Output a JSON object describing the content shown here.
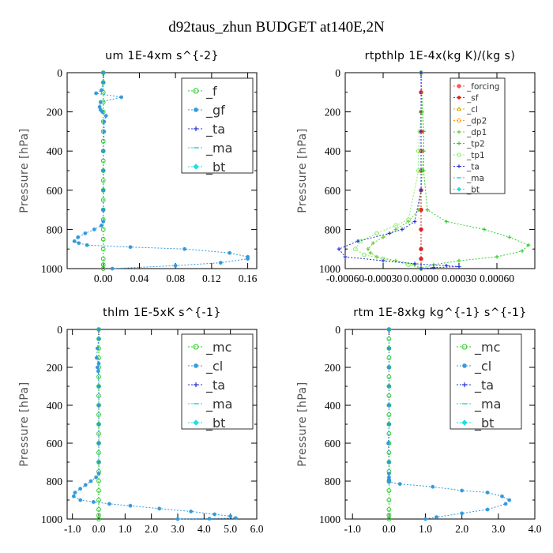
{
  "figure": {
    "title": "d92taus_zhun  BUDGET at140E,2N"
  },
  "chart_data": [
    {
      "type": "line",
      "title": "um   1E-4xm  s^{-2}",
      "xlabel": "",
      "ylabel": "Pressure [hPa]",
      "xlim": [
        -0.04,
        0.17
      ],
      "ylim": [
        1000,
        0
      ],
      "xticks": [
        0.0,
        0.04,
        0.08,
        0.12,
        0.16
      ],
      "xtick_labels": [
        "0.00",
        "0.04",
        "0.08",
        "0.12",
        "0.16"
      ],
      "yticks": [
        0,
        200,
        400,
        600,
        800,
        1000
      ],
      "ytick_labels": [
        "0",
        "200",
        "400",
        "600",
        "800",
        "1000"
      ],
      "legend": "top-right",
      "series": [
        {
          "name": "_f",
          "color": "#22cc22",
          "marker": "circle-open",
          "x": [
            0,
            0,
            0,
            0,
            0,
            0,
            0,
            0,
            0,
            0,
            0,
            0,
            0,
            0,
            0,
            0,
            0,
            0,
            0,
            0,
            0,
            0
          ],
          "y": [
            0,
            50,
            100,
            150,
            200,
            250,
            300,
            350,
            400,
            450,
            500,
            550,
            600,
            650,
            700,
            750,
            800,
            850,
            900,
            950,
            980,
            1000
          ]
        },
        {
          "name": "_gf",
          "color": "#3399dd",
          "marker": "star",
          "x": [
            0,
            0,
            -0.002,
            -0.008,
            0.02,
            -0.003,
            -0.004,
            -0.003,
            -0.001,
            0.003,
            0.001,
            0.001,
            0,
            0,
            0,
            0,
            0,
            -0.002,
            -0.01,
            -0.02,
            -0.028,
            -0.032,
            -0.027,
            -0.018,
            0.03,
            0.09,
            0.14,
            0.16,
            0.16,
            0.13,
            0.08,
            0.01
          ],
          "y": [
            0,
            50,
            90,
            105,
            125,
            150,
            175,
            190,
            200,
            220,
            250,
            300,
            400,
            500,
            600,
            700,
            760,
            780,
            800,
            820,
            840,
            860,
            870,
            880,
            890,
            900,
            920,
            940,
            950,
            970,
            985,
            1000
          ]
        },
        {
          "name": "_ta",
          "color": "#2233dd",
          "marker": "plus",
          "x": [],
          "y": []
        },
        {
          "name": "_ma",
          "color": "#22cccc",
          "marker": "dash",
          "x": [],
          "y": []
        },
        {
          "name": "_bt",
          "color": "#22dddd",
          "marker": "diamond",
          "x": [],
          "y": []
        }
      ]
    },
    {
      "type": "line",
      "title": "rtpthlp   1E-4x(kg K)/(kg s)",
      "xlabel": "",
      "ylabel": "Pressure [hPa]",
      "xlim": [
        -0.0006,
        0.0009
      ],
      "ylim": [
        1000,
        0
      ],
      "xticks": [
        -0.0006,
        -0.0003,
        0.0,
        0.0003,
        0.0006
      ],
      "xtick_labels": [
        "-0.00060",
        "-0.00030",
        "0.00000",
        "0.00030",
        "0.00060"
      ],
      "yticks": [
        0,
        200,
        400,
        600,
        800,
        1000
      ],
      "ytick_labels": [
        "0",
        "200",
        "400",
        "600",
        "800",
        "1000"
      ],
      "legend": "top-right",
      "series": [
        {
          "name": "_forcing",
          "color": "#ff5555",
          "marker": "circle",
          "x": [
            0,
            0,
            0,
            0,
            0,
            0,
            0,
            0,
            0,
            0,
            0,
            0
          ],
          "y": [
            0,
            100,
            200,
            300,
            400,
            500,
            600,
            700,
            800,
            900,
            950,
            1000
          ]
        },
        {
          "name": "_sf",
          "color": "#dd2222",
          "marker": "star",
          "x": [
            0,
            0,
            0,
            0,
            0,
            0,
            0,
            0,
            0,
            0,
            0,
            0
          ],
          "y": [
            0,
            100,
            200,
            300,
            400,
            500,
            600,
            700,
            800,
            900,
            950,
            1000
          ]
        },
        {
          "name": "_cl",
          "color": "#ddaa00",
          "marker": "triangle",
          "x": [],
          "y": []
        },
        {
          "name": "_dp2",
          "color": "#ff9900",
          "marker": "circle-open",
          "x": [],
          "y": []
        },
        {
          "name": "_dp1",
          "color": "#66cc33",
          "marker": "plus",
          "x": [
            0,
            1e-05,
            2e-05,
            2e-05,
            1e-05,
            0,
            -2e-05,
            -0.0001,
            -0.0002,
            -0.0003,
            -0.00038,
            -0.00042,
            -0.0004,
            -0.00035,
            -0.0002,
            -5e-05,
            0
          ],
          "y": [
            0,
            200,
            300,
            400,
            500,
            600,
            700,
            760,
            800,
            840,
            870,
            900,
            920,
            940,
            960,
            980,
            1000
          ]
        },
        {
          "name": "_tp2",
          "color": "#33cc33",
          "marker": "plus",
          "x": [
            0,
            1e-05,
            2e-05,
            2e-05,
            2e-05,
            5e-05,
            0.0002,
            0.0005,
            0.0007,
            0.00085,
            0.0008,
            0.0006,
            0.0003,
            0.0001,
            0
          ],
          "y": [
            0,
            200,
            300,
            400,
            500,
            700,
            760,
            800,
            840,
            880,
            910,
            940,
            960,
            980,
            1000
          ]
        },
        {
          "name": "_tp1",
          "color": "#88ee66",
          "marker": "circle-open",
          "x": [
            0,
            0,
            -1e-05,
            -2e-05,
            -2e-05,
            -0.0001,
            -0.0002,
            -0.00035,
            -0.00048,
            -0.00052,
            -0.00045,
            -0.0003,
            -0.0001,
            0
          ],
          "y": [
            0,
            200,
            300,
            400,
            500,
            750,
            780,
            820,
            860,
            900,
            930,
            950,
            980,
            1000
          ]
        },
        {
          "name": "_ta",
          "color": "#2233dd",
          "marker": "plus",
          "x": [
            0,
            0,
            0,
            -5e-05,
            -0.00015,
            -0.00025,
            -0.0005,
            -0.00065,
            -0.0006,
            -0.0003,
            -5e-05,
            0.0002,
            0.0003,
            0.0001,
            0
          ],
          "y": [
            0,
            300,
            600,
            760,
            800,
            820,
            860,
            900,
            940,
            960,
            975,
            985,
            990,
            995,
            1000
          ]
        },
        {
          "name": "_ma",
          "color": "#22cccc",
          "marker": "dash",
          "x": [],
          "y": []
        },
        {
          "name": "_bt",
          "color": "#22dddd",
          "marker": "diamond",
          "x": [],
          "y": []
        }
      ]
    },
    {
      "type": "line",
      "title": "thlm   1E-5xK  s^{-1}",
      "xlabel": "",
      "ylabel": "Pressure [hPa]",
      "xlim": [
        -1.2,
        6.0
      ],
      "ylim": [
        1000,
        0
      ],
      "xticks": [
        -1.0,
        0.0,
        1.0,
        2.0,
        3.0,
        4.0,
        5.0,
        6.0
      ],
      "xtick_labels": [
        "-1.0",
        "0.0",
        "1.0",
        "2.0",
        "3.0",
        "4.0",
        "5.0",
        "6.0"
      ],
      "yticks": [
        0,
        200,
        400,
        600,
        800,
        1000
      ],
      "ytick_labels": [
        "0",
        "200",
        "400",
        "600",
        "800",
        "1000"
      ],
      "legend": "top-right",
      "series": [
        {
          "name": "_mc",
          "color": "#22cc22",
          "marker": "circle-open",
          "x": [
            0,
            0,
            0,
            0,
            0,
            0,
            0,
            0,
            0,
            0,
            0,
            0,
            0,
            0,
            0,
            0,
            0,
            0,
            0,
            0,
            0,
            0
          ],
          "y": [
            0,
            50,
            100,
            150,
            200,
            250,
            300,
            350,
            400,
            450,
            500,
            550,
            600,
            650,
            700,
            750,
            800,
            850,
            900,
            950,
            980,
            1000
          ]
        },
        {
          "name": "_cl",
          "color": "#3399dd",
          "marker": "star",
          "x": [
            0,
            0,
            -0.05,
            -0.08,
            0,
            -0.05,
            -0.02,
            0,
            0,
            0,
            0,
            0,
            0,
            -0.1,
            -0.3,
            -0.5,
            -0.7,
            -0.9,
            -0.95,
            -0.7,
            -0.2,
            0.4,
            1.2,
            2.3,
            3.5,
            4.4,
            5.0,
            5.2,
            4.2,
            3.0
          ],
          "y": [
            0,
            50,
            100,
            150,
            180,
            200,
            220,
            300,
            400,
            500,
            600,
            700,
            760,
            780,
            800,
            820,
            840,
            860,
            880,
            900,
            910,
            920,
            930,
            945,
            960,
            975,
            985,
            995,
            998,
            1000
          ]
        },
        {
          "name": "_ta",
          "color": "#2233dd",
          "marker": "plus",
          "x": [],
          "y": []
        },
        {
          "name": "_ma",
          "color": "#22cccc",
          "marker": "dash",
          "x": [],
          "y": []
        },
        {
          "name": "_bt",
          "color": "#22dddd",
          "marker": "diamond",
          "x": [],
          "y": []
        }
      ]
    },
    {
      "type": "line",
      "title": "rtm   1E-8xkg  kg^{-1} s^{-1}",
      "xlabel": "",
      "ylabel": "Pressure [hPa]",
      "xlim": [
        -1.2,
        4.0
      ],
      "ylim": [
        1000,
        0
      ],
      "xticks": [
        -1.0,
        0.0,
        1.0,
        2.0,
        3.0,
        4.0
      ],
      "xtick_labels": [
        "-1.0",
        "0.0",
        "1.0",
        "2.0",
        "3.0",
        "4.0"
      ],
      "yticks": [
        0,
        200,
        400,
        600,
        800,
        1000
      ],
      "ytick_labels": [
        "0",
        "200",
        "400",
        "600",
        "800",
        "1000"
      ],
      "legend": "top-right",
      "series": [
        {
          "name": "_mc",
          "color": "#22cc22",
          "marker": "circle-open",
          "x": [
            0,
            0,
            0,
            0,
            0,
            0,
            0,
            0,
            0,
            0,
            0,
            0,
            0,
            0,
            0,
            0,
            0,
            0,
            0,
            0,
            0,
            0
          ],
          "y": [
            0,
            50,
            100,
            150,
            200,
            250,
            300,
            350,
            400,
            450,
            500,
            550,
            600,
            650,
            700,
            750,
            800,
            850,
            900,
            950,
            980,
            1000
          ]
        },
        {
          "name": "_cl",
          "color": "#3399dd",
          "marker": "star",
          "x": [
            0,
            0,
            0,
            0,
            0,
            0,
            -0.02,
            0,
            0,
            0,
            0,
            0,
            0,
            0,
            0.3,
            1.2,
            2.0,
            2.7,
            3.1,
            3.3,
            3.2,
            2.7,
            2.0,
            1.3,
            1.0
          ],
          "y": [
            0,
            100,
            200,
            300,
            400,
            500,
            600,
            700,
            760,
            780,
            790,
            795,
            800,
            805,
            815,
            830,
            850,
            860,
            880,
            900,
            920,
            950,
            970,
            990,
            1000
          ]
        },
        {
          "name": "_ta",
          "color": "#2233dd",
          "marker": "plus",
          "x": [],
          "y": []
        },
        {
          "name": "_ma",
          "color": "#22cccc",
          "marker": "dash",
          "x": [],
          "y": []
        },
        {
          "name": "_bt",
          "color": "#22dddd",
          "marker": "diamond",
          "x": [],
          "y": []
        }
      ]
    }
  ]
}
